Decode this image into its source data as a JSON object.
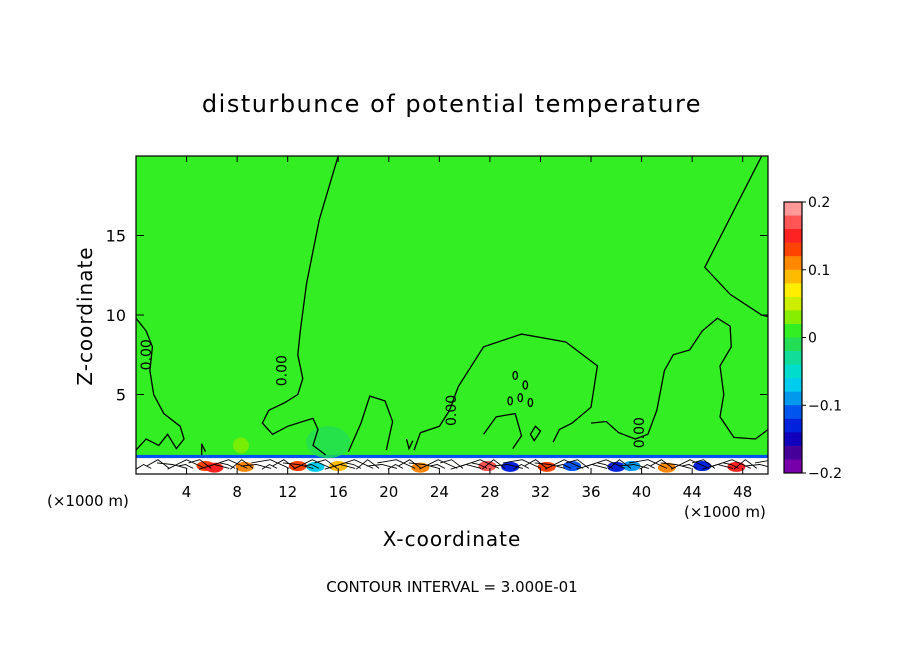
{
  "chart_data": {
    "type": "heatmap",
    "title": "disturbunce of potential temperature",
    "xlabel": "X-coordinate",
    "ylabel": "Z-coordinate",
    "x_unit_left": "(×1000 m)",
    "x_unit_right": "(×1000 m)",
    "xlim": [
      0,
      50
    ],
    "ylim": [
      0,
      20
    ],
    "x_ticks": [
      4,
      8,
      12,
      16,
      20,
      24,
      28,
      32,
      36,
      40,
      44,
      48
    ],
    "y_ticks": [
      5,
      10,
      15
    ],
    "background_value": 0,
    "background_color": "#33ee22",
    "contour_labels": [
      {
        "text": "0.00",
        "x": 1.2,
        "y": 7.5
      },
      {
        "text": "0.00",
        "x": 11.9,
        "y": 6.5
      },
      {
        "text": "0.00",
        "x": 25.3,
        "y": 4.0
      },
      {
        "text": "0.00",
        "x": 40.2,
        "y": 2.6
      }
    ],
    "colorbar": {
      "range": [
        -0.2,
        0.2
      ],
      "tick_values": [
        0.2,
        0.1,
        0,
        -0.1,
        -0.2
      ],
      "tick_labels": [
        "0.2",
        "0.1",
        "0",
        "−0.1",
        "−0.2"
      ],
      "colors_top_to_bottom": [
        "#ff9999",
        "#ff5555",
        "#ff2222",
        "#ff4400",
        "#ff8800",
        "#ffbb00",
        "#ffee00",
        "#ccee00",
        "#88ee00",
        "#33ee22",
        "#22dd55",
        "#11dd99",
        "#00ddcc",
        "#00ccee",
        "#0099ee",
        "#0055ee",
        "#0022dd",
        "#1100bb",
        "#440099",
        "#7700aa"
      ]
    },
    "footer": "CONTOUR INTERVAL = 3.000E-01"
  }
}
